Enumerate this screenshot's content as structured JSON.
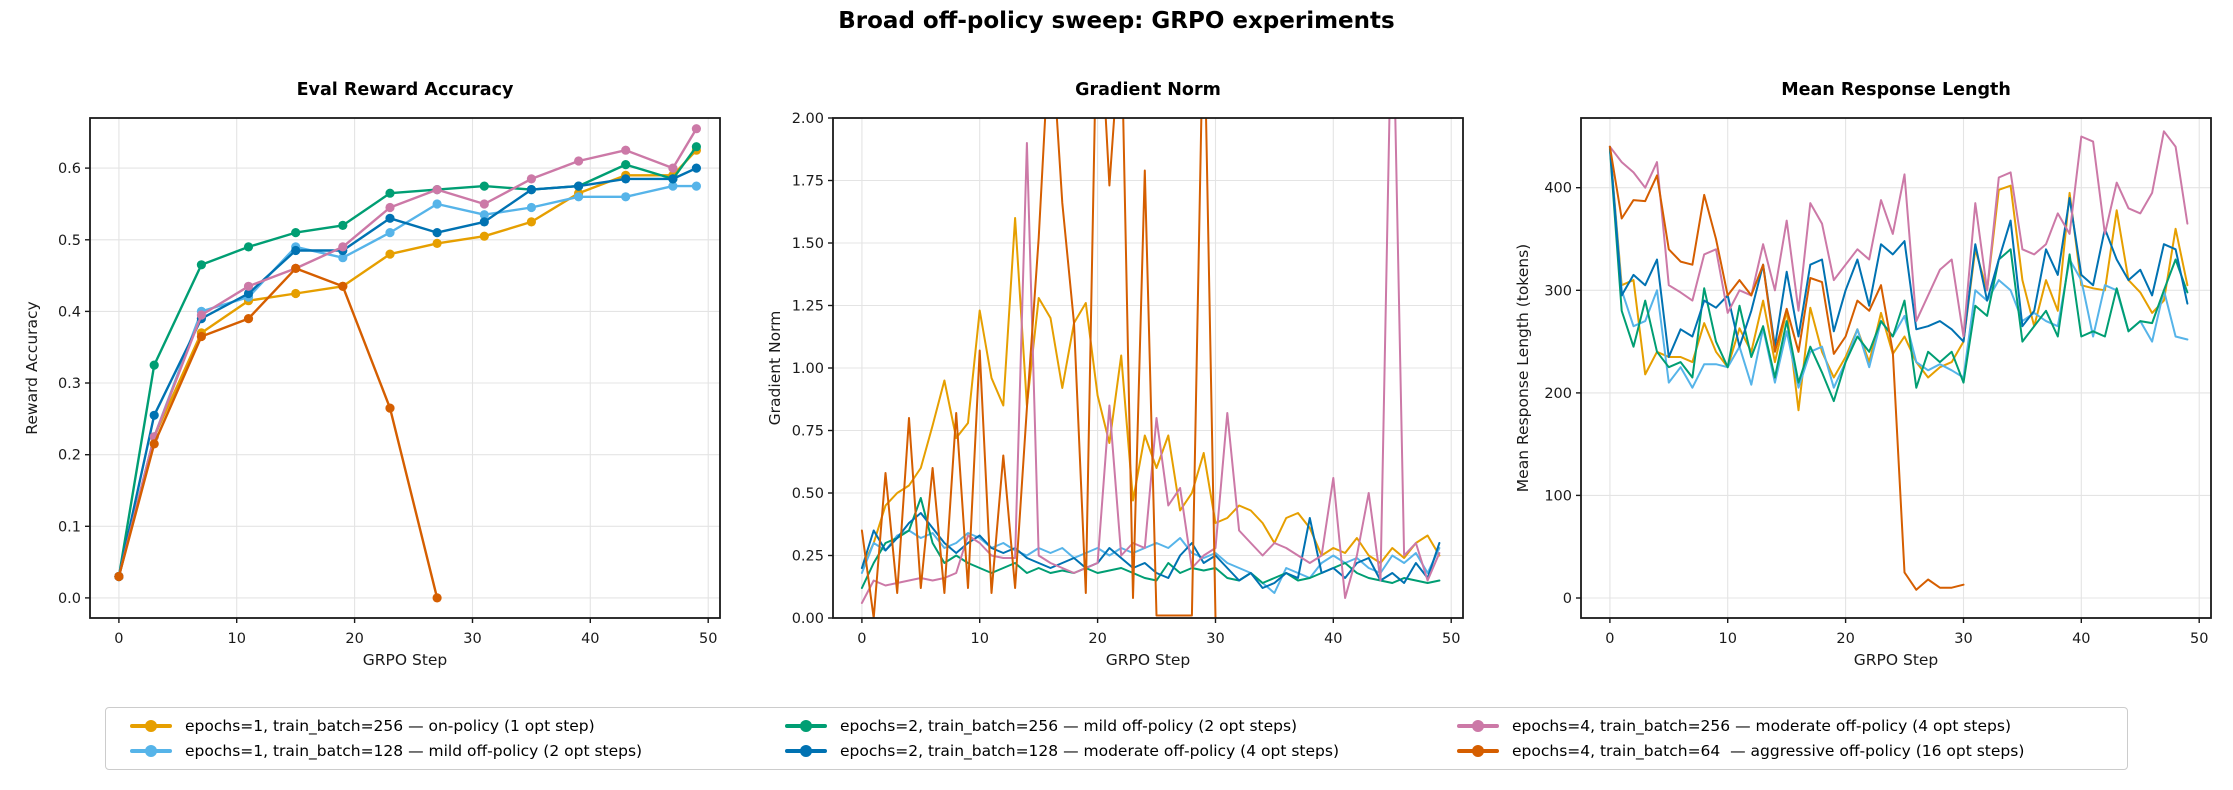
{
  "suptitle": "Broad off-policy sweep: GRPO experiments",
  "legend": {
    "items": [
      {
        "label": "epochs=1, train_batch=256 — on-policy (1 opt step)",
        "color": "#E69F00"
      },
      {
        "label": "epochs=1, train_batch=128 — mild off-policy (2 opt steps)",
        "color": "#56B4E9"
      },
      {
        "label": "epochs=2, train_batch=256 — mild off-policy (2 opt steps)",
        "color": "#009E73"
      },
      {
        "label": "epochs=2, train_batch=128 — moderate off-policy (4 opt steps)",
        "color": "#0072B2"
      },
      {
        "label": "epochs=4, train_batch=256 — moderate off-policy (4 opt steps)",
        "color": "#CC79A7"
      },
      {
        "label": "epochs=4, train_batch=64  — aggressive off-policy (16 opt steps)",
        "color": "#D55E00"
      }
    ]
  },
  "chart_data": [
    {
      "type": "line",
      "title": "Eval Reward Accuracy",
      "xlabel": "GRPO Step",
      "ylabel": "Reward Accuracy",
      "xlim": [
        -2.45,
        51.0
      ],
      "ylim": [
        -0.028,
        0.67
      ],
      "xticks": [
        0,
        10,
        20,
        30,
        40,
        50
      ],
      "xtick_labels": [
        "0",
        "10",
        "20",
        "30",
        "40",
        "50"
      ],
      "yticks": [
        0.0,
        0.1,
        0.2,
        0.3,
        0.4,
        0.5,
        0.6
      ],
      "ytick_labels": [
        "0.0",
        "0.1",
        "0.2",
        "0.3",
        "0.4",
        "0.5",
        "0.6"
      ],
      "grid": true,
      "markers": true,
      "linewidth": 2.4,
      "x": [
        0,
        3,
        7,
        11,
        15,
        19,
        23,
        27,
        31,
        35,
        39,
        43,
        47,
        49
      ],
      "series": [
        {
          "name": "epochs=1, train_batch=256 — on-policy (1 opt step)",
          "color": "#E69F00",
          "values": [
            0.03,
            0.225,
            0.37,
            0.415,
            0.425,
            0.435,
            0.48,
            0.495,
            0.505,
            0.525,
            0.565,
            0.59,
            0.59,
            0.625
          ]
        },
        {
          "name": "epochs=1, train_batch=128 — mild off-policy (2 opt steps)",
          "color": "#56B4E9",
          "values": [
            0.03,
            0.225,
            0.4,
            0.42,
            0.49,
            0.475,
            0.51,
            0.55,
            0.535,
            0.545,
            0.56,
            0.56,
            0.575,
            0.575
          ]
        },
        {
          "name": "epochs=2, train_batch=256 — mild off-policy (2 opt steps)",
          "color": "#009E73",
          "values": [
            0.03,
            0.325,
            0.465,
            0.49,
            0.51,
            0.52,
            0.565,
            0.57,
            0.575,
            0.57,
            0.575,
            0.605,
            0.585,
            0.63
          ]
        },
        {
          "name": "epochs=2, train_batch=128 — moderate off-policy (4 opt steps)",
          "color": "#0072B2",
          "values": [
            0.03,
            0.255,
            0.39,
            0.425,
            0.485,
            0.485,
            0.53,
            0.51,
            0.525,
            0.57,
            0.575,
            0.585,
            0.585,
            0.6
          ]
        },
        {
          "name": "epochs=4, train_batch=256 — moderate off-policy (4 opt steps)",
          "color": "#CC79A7",
          "values": [
            0.03,
            0.225,
            0.395,
            0.435,
            0.46,
            0.49,
            0.545,
            0.57,
            0.55,
            0.585,
            0.61,
            0.625,
            0.6,
            0.655
          ]
        },
        {
          "name": "epochs=4, train_batch=64 — aggressive off-policy (16 opt steps)",
          "color": "#D55E00",
          "x": [
            0,
            3,
            7,
            11,
            15,
            19,
            23,
            27
          ],
          "values": [
            0.03,
            0.215,
            0.365,
            0.39,
            0.46,
            0.435,
            0.265,
            0.0
          ]
        }
      ]
    },
    {
      "type": "line",
      "title": "Gradient Norm",
      "xlabel": "GRPO Step",
      "ylabel": "Gradient Norm",
      "xlim": [
        -2.45,
        51.0
      ],
      "ylim": [
        0.0,
        2.0
      ],
      "xticks": [
        0,
        10,
        20,
        30,
        40,
        50
      ],
      "xtick_labels": [
        "0",
        "10",
        "20",
        "30",
        "40",
        "50"
      ],
      "yticks": [
        0.0,
        0.25,
        0.5,
        0.75,
        1.0,
        1.25,
        1.5,
        1.75,
        2.0
      ],
      "ytick_labels": [
        "0.00",
        "0.25",
        "0.50",
        "0.75",
        "1.00",
        "1.25",
        "1.50",
        "1.75",
        "2.00"
      ],
      "grid": true,
      "markers": false,
      "linewidth": 2.0,
      "series": [
        {
          "name": "epochs=1, train_batch=256 — on-policy (1 opt step)",
          "color": "#E69F00",
          "values": [
            0.2,
            0.3,
            0.45,
            0.5,
            0.53,
            0.6,
            0.77,
            0.95,
            0.72,
            0.78,
            1.23,
            0.96,
            0.85,
            1.6,
            0.85,
            1.28,
            1.2,
            0.92,
            1.18,
            1.26,
            0.89,
            0.7,
            1.05,
            0.47,
            0.73,
            0.6,
            0.73,
            0.43,
            0.5,
            0.66,
            0.38,
            0.4,
            0.45,
            0.43,
            0.38,
            0.3,
            0.4,
            0.42,
            0.36,
            0.25,
            0.28,
            0.26,
            0.32,
            0.25,
            0.22,
            0.28,
            0.24,
            0.3,
            0.33,
            0.25
          ]
        },
        {
          "name": "epochs=1, train_batch=128 — mild off-policy (2 opt steps)",
          "color": "#56B4E9",
          "values": [
            0.18,
            0.3,
            0.27,
            0.33,
            0.35,
            0.32,
            0.34,
            0.28,
            0.3,
            0.34,
            0.32,
            0.28,
            0.3,
            0.27,
            0.25,
            0.28,
            0.26,
            0.28,
            0.24,
            0.26,
            0.28,
            0.25,
            0.28,
            0.26,
            0.28,
            0.3,
            0.28,
            0.32,
            0.26,
            0.24,
            0.26,
            0.22,
            0.2,
            0.18,
            0.14,
            0.1,
            0.2,
            0.18,
            0.16,
            0.22,
            0.25,
            0.22,
            0.24,
            0.2,
            0.18,
            0.25,
            0.22,
            0.26,
            0.18,
            0.28
          ]
        },
        {
          "name": "epochs=2, train_batch=256 — mild off-policy (2 opt steps)",
          "color": "#009E73",
          "values": [
            0.12,
            0.22,
            0.3,
            0.32,
            0.35,
            0.48,
            0.3,
            0.22,
            0.25,
            0.22,
            0.2,
            0.18,
            0.2,
            0.22,
            0.18,
            0.2,
            0.18,
            0.19,
            0.18,
            0.2,
            0.18,
            0.19,
            0.2,
            0.18,
            0.16,
            0.15,
            0.22,
            0.18,
            0.2,
            0.19,
            0.2,
            0.16,
            0.15,
            0.18,
            0.14,
            0.16,
            0.18,
            0.15,
            0.16,
            0.18,
            0.2,
            0.22,
            0.18,
            0.16,
            0.15,
            0.14,
            0.16,
            0.15,
            0.14,
            0.15
          ]
        },
        {
          "name": "epochs=2, train_batch=128 — moderate off-policy (4 opt steps)",
          "color": "#0072B2",
          "values": [
            0.2,
            0.35,
            0.27,
            0.32,
            0.38,
            0.42,
            0.36,
            0.3,
            0.26,
            0.3,
            0.33,
            0.28,
            0.26,
            0.28,
            0.24,
            0.22,
            0.2,
            0.22,
            0.24,
            0.2,
            0.22,
            0.28,
            0.24,
            0.2,
            0.22,
            0.18,
            0.16,
            0.25,
            0.3,
            0.22,
            0.25,
            0.2,
            0.15,
            0.18,
            0.12,
            0.14,
            0.18,
            0.16,
            0.4,
            0.18,
            0.2,
            0.16,
            0.22,
            0.24,
            0.15,
            0.18,
            0.14,
            0.22,
            0.16,
            0.3
          ]
        },
        {
          "name": "epochs=4, train_batch=256 — moderate off-policy (4 opt steps)",
          "color": "#CC79A7",
          "values": [
            0.06,
            0.15,
            0.13,
            0.14,
            0.15,
            0.16,
            0.15,
            0.16,
            0.18,
            0.33,
            0.3,
            0.25,
            0.24,
            0.24,
            1.9,
            0.25,
            0.22,
            0.2,
            0.18,
            0.2,
            0.22,
            0.85,
            0.25,
            0.3,
            0.28,
            0.8,
            0.45,
            0.52,
            0.2,
            0.25,
            0.28,
            0.82,
            0.35,
            0.3,
            0.25,
            0.3,
            0.28,
            0.25,
            0.22,
            0.25,
            0.56,
            0.08,
            0.25,
            0.5,
            0.15,
            2.6,
            0.25,
            0.3,
            0.15,
            0.26
          ]
        },
        {
          "name": "epochs=4, train_batch=64 — aggressive off-policy (16 opt steps)",
          "color": "#D55E00",
          "values": [
            0.35,
            0.0,
            0.58,
            0.1,
            0.8,
            0.12,
            0.6,
            0.1,
            0.82,
            0.12,
            1.07,
            0.1,
            0.65,
            0.12,
            0.84,
            1.52,
            2.4,
            1.66,
            1.18,
            0.1,
            2.6,
            1.73,
            2.4,
            0.08,
            1.79,
            0.01,
            0.01,
            0.01,
            0.01,
            2.5,
            0.0
          ]
        }
      ]
    },
    {
      "type": "line",
      "title": "Mean Response Length",
      "xlabel": "GRPO Step",
      "ylabel": "Mean Response Length (tokens)",
      "xlim": [
        -2.45,
        51.0
      ],
      "ylim": [
        -19.5,
        468
      ],
      "xticks": [
        0,
        10,
        20,
        30,
        40,
        50
      ],
      "xtick_labels": [
        "0",
        "10",
        "20",
        "30",
        "40",
        "50"
      ],
      "yticks": [
        0,
        100,
        200,
        300,
        400
      ],
      "ytick_labels": [
        "0",
        "100",
        "200",
        "300",
        "400"
      ],
      "grid": true,
      "markers": false,
      "linewidth": 2.0,
      "series": [
        {
          "name": "epochs=1, train_batch=256 — on-policy (1 opt step)",
          "color": "#E69F00",
          "values": [
            440,
            305,
            310,
            218,
            240,
            235,
            235,
            230,
            268,
            240,
            225,
            263,
            240,
            290,
            230,
            280,
            183,
            283,
            240,
            215,
            235,
            262,
            230,
            278,
            238,
            255,
            230,
            215,
            225,
            230,
            250,
            340,
            300,
            398,
            402,
            310,
            265,
            310,
            280,
            395,
            305,
            302,
            300,
            378,
            310,
            298,
            278,
            290,
            360,
            305
          ]
        },
        {
          "name": "epochs=1, train_batch=128 — mild off-policy (2 opt steps)",
          "color": "#56B4E9",
          "values": [
            440,
            300,
            265,
            270,
            300,
            210,
            225,
            205,
            228,
            228,
            225,
            245,
            208,
            263,
            210,
            260,
            205,
            240,
            245,
            205,
            230,
            262,
            225,
            270,
            255,
            275,
            230,
            222,
            228,
            222,
            215,
            300,
            290,
            310,
            300,
            270,
            278,
            270,
            265,
            330,
            310,
            255,
            305,
            300,
            260,
            270,
            250,
            300,
            255,
            252
          ]
        },
        {
          "name": "epochs=2, train_batch=256 — mild off-policy (2 opt steps)",
          "color": "#009E73",
          "values": [
            438,
            280,
            245,
            290,
            240,
            225,
            230,
            215,
            302,
            250,
            225,
            285,
            235,
            265,
            215,
            270,
            210,
            245,
            220,
            192,
            230,
            255,
            240,
            270,
            255,
            290,
            205,
            240,
            230,
            240,
            210,
            285,
            275,
            330,
            340,
            250,
            265,
            280,
            255,
            335,
            255,
            260,
            255,
            302,
            260,
            270,
            268,
            300,
            330,
            298
          ]
        },
        {
          "name": "epochs=2, train_batch=128 — moderate off-policy (4 opt steps)",
          "color": "#0072B2",
          "values": [
            440,
            295,
            315,
            305,
            330,
            235,
            262,
            255,
            290,
            283,
            295,
            245,
            280,
            325,
            245,
            318,
            255,
            325,
            330,
            260,
            300,
            330,
            285,
            345,
            335,
            348,
            262,
            265,
            270,
            262,
            250,
            345,
            290,
            330,
            368,
            265,
            280,
            340,
            315,
            390,
            315,
            305,
            360,
            330,
            310,
            320,
            295,
            345,
            340,
            287
          ]
        },
        {
          "name": "epochs=4, train_batch=256 — moderate off-policy (4 opt steps)",
          "color": "#CC79A7",
          "values": [
            440,
            425,
            415,
            400,
            425,
            305,
            298,
            290,
            335,
            340,
            278,
            300,
            295,
            345,
            300,
            368,
            280,
            385,
            365,
            310,
            325,
            340,
            330,
            388,
            355,
            413,
            270,
            295,
            320,
            330,
            255,
            385,
            300,
            410,
            415,
            340,
            335,
            345,
            375,
            355,
            450,
            445,
            355,
            405,
            380,
            375,
            395,
            455,
            440,
            365
          ]
        },
        {
          "name": "epochs=4, train_batch=64 — aggressive off-policy (16 opt steps)",
          "color": "#D55E00",
          "values": [
            440,
            370,
            388,
            387,
            412,
            340,
            328,
            325,
            393,
            350,
            295,
            310,
            295,
            325,
            240,
            282,
            240,
            312,
            308,
            238,
            255,
            290,
            280,
            305,
            240,
            25,
            8,
            18,
            10,
            10,
            13
          ]
        }
      ]
    }
  ]
}
